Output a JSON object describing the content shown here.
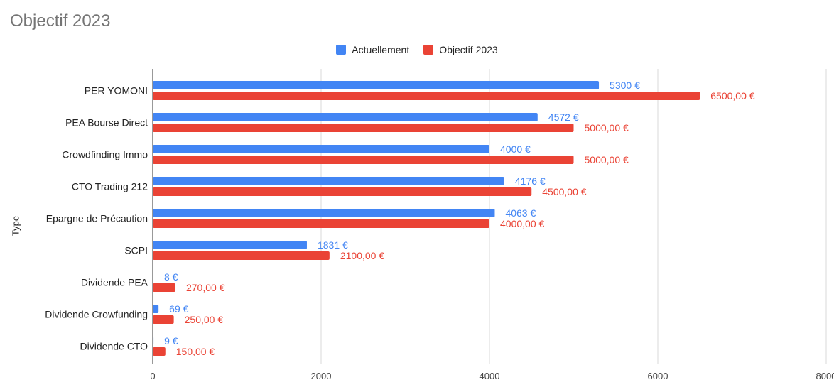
{
  "chart_data": {
    "type": "bar",
    "orientation": "horizontal",
    "title": "Objectif 2023",
    "ylabel": "Type",
    "xlabel": "",
    "xlim": [
      0,
      8000
    ],
    "x_ticks": [
      0,
      2000,
      4000,
      6000,
      8000
    ],
    "grid": true,
    "legend_position": "top",
    "categories": [
      "PER YOMONI",
      "PEA Bourse Direct",
      "Crowdfinding Immo",
      "CTO Trading 212",
      "Epargne de Précaution",
      "SCPI",
      "Dividende PEA",
      "Dividende Crowfunding",
      "Dividende CTO"
    ],
    "series": [
      {
        "name": "Actuellement",
        "color": "#4285f4",
        "values": [
          5300,
          4572,
          4000,
          4176,
          4063,
          1831,
          8,
          69,
          9
        ],
        "labels": [
          "5300 €",
          "4572 €",
          "4000 €",
          "4176 €",
          "4063 €",
          "1831 €",
          "8 €",
          "69 €",
          "9 €"
        ]
      },
      {
        "name": "Objectif 2023",
        "color": "#ea4335",
        "values": [
          6500,
          5000,
          5000,
          4500,
          4000,
          2100,
          270,
          250,
          150
        ],
        "labels": [
          "6500,00 €",
          "5000,00 €",
          "5000,00 €",
          "4500,00 €",
          "4000,00 €",
          "2100,00 €",
          "270,00 €",
          "250,00 €",
          "150,00 €"
        ]
      }
    ]
  }
}
